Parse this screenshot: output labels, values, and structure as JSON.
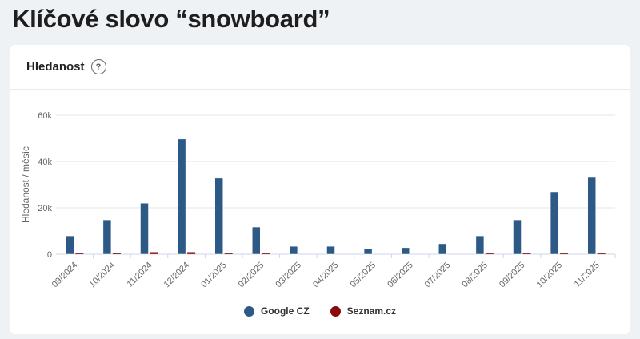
{
  "page": {
    "title": "Klíčové slovo “snowboard”"
  },
  "card": {
    "title": "Hledanost",
    "help_icon": "question-mark-icon",
    "help_glyph": "?"
  },
  "colors": {
    "google": "#2c5985",
    "seznam": "#8b0a0a",
    "grid": "#e6e6e6",
    "axis": "#ccd6eb"
  },
  "legend": [
    {
      "label": "Google CZ",
      "color": "#2c5985"
    },
    {
      "label": "Seznam.cz",
      "color": "#8b0a0a"
    }
  ],
  "chart_data": {
    "type": "bar",
    "title": "Hledanost",
    "xlabel": "",
    "ylabel": "Hledanost / měsíc",
    "ylim": [
      0,
      60000
    ],
    "yticks": [
      0,
      20000,
      40000,
      60000
    ],
    "ytick_labels": [
      "0",
      "20k",
      "40k",
      "60k"
    ],
    "grid": true,
    "legend_position": "bottom",
    "categories": [
      "09/2024",
      "10/2024",
      "11/2024",
      "12/2024",
      "01/2025",
      "02/2025",
      "03/2025",
      "04/2025",
      "05/2025",
      "06/2025",
      "07/2025",
      "08/2025",
      "09/2025",
      "10/2025",
      "11/2025"
    ],
    "series": [
      {
        "name": "Google CZ",
        "values": [
          7900,
          14800,
          22000,
          49700,
          32800,
          11700,
          3400,
          3400,
          2400,
          2800,
          4500,
          7900,
          14800,
          26900,
          33100
        ]
      },
      {
        "name": "Seznam.cz",
        "values": [
          200,
          600,
          900,
          900,
          600,
          200,
          0,
          0,
          0,
          0,
          0,
          200,
          200,
          600,
          600
        ]
      }
    ]
  }
}
